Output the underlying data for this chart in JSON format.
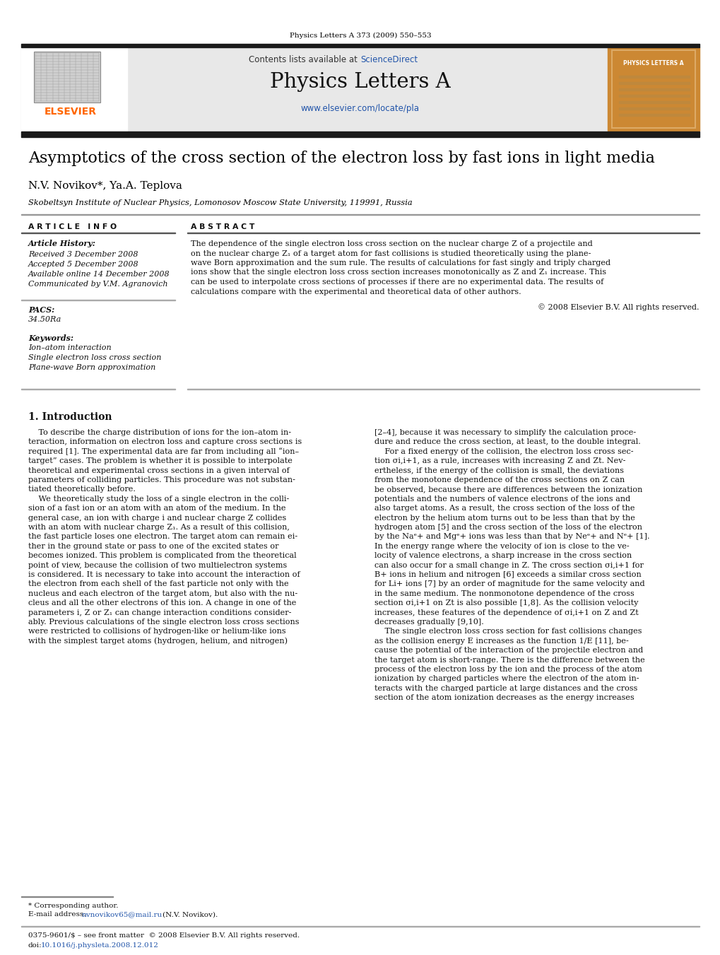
{
  "page_width": 10.2,
  "page_height": 13.51,
  "dpi": 100,
  "background_color": "#ffffff",
  "journal_ref": "Physics Letters A 373 (2009) 550–553",
  "journal_ref_color": "#000000",
  "header_bg_color": "#e8e8e8",
  "header_contents_text": "Contents lists available at ",
  "header_sciencedirect_text": "ScienceDirect",
  "header_sciencedirect_color": "#2255aa",
  "header_journal_name": "Physics Letters A",
  "header_url": "www.elsevier.com/locate/pla",
  "header_url_color": "#2255aa",
  "elsevier_text": "ELSEVIER",
  "elsevier_color": "#ff6600",
  "cover_bg_color": "#cc8833",
  "cover_border_color": "#ddaa66",
  "cover_journal_text": "PHYSICS LETTERS A",
  "cover_journal_color": "#ffffff",
  "black_bar_color": "#1a1a1a",
  "article_title": "Asymptotics of the cross section of the electron loss by fast ions in light media",
  "article_title_color": "#000000",
  "authors": "N.V. Novikov*, Ya.A. Teplova",
  "authors_color": "#000000",
  "affiliation": "Skobeltsyn Institute of Nuclear Physics, Lomonosov Moscow State University, 119991, Russia",
  "affiliation_color": "#000000",
  "section_article_info": "A R T I C L E   I N F O",
  "section_abstract": "A B S T R A C T",
  "article_history_label": "Article History:",
  "received": "Received 3 December 2008",
  "accepted": "Accepted 5 December 2008",
  "available": "Available online 14 December 2008",
  "communicated": "Communicated by V.M. Agranovich",
  "pacs_label": "PACS:",
  "pacs_value": "34.50Ra",
  "keywords_label": "Keywords:",
  "keyword1": "Ion–atom interaction",
  "keyword2": "Single electron loss cross section",
  "keyword3": "Plane-wave Born approximation",
  "copyright_text": "© 2008 Elsevier B.V. All rights reserved.",
  "section1_title": "1. Introduction",
  "abstract_lines": [
    "The dependence of the single electron loss cross section on the nuclear charge Z of a projectile and",
    "on the nuclear charge Z₁ of a target atom for fast collisions is studied theoretically using the plane-",
    "wave Born approximation and the sum rule. The results of calculations for fast singly and triply charged",
    "ions show that the single electron loss cross section increases monotonically as Z and Z₁ increase. This",
    "can be used to interpolate cross sections of processes if there are no experimental data. The results of",
    "calculations compare with the experimental and theoretical data of other authors."
  ],
  "left_col_intro": [
    "    To describe the charge distribution of ions for the ion–atom in-",
    "teraction, information on electron loss and capture cross sections is",
    "required [1]. The experimental data are far from including all “ion–",
    "target” cases. The problem is whether it is possible to interpolate",
    "theoretical and experimental cross sections in a given interval of",
    "parameters of colliding particles. This procedure was not substan-",
    "tiated theoretically before.",
    "    We theoretically study the loss of a single electron in the colli-",
    "sion of a fast ion or an atom with an atom of the medium. In the",
    "general case, an ion with charge i and nuclear charge Z collides",
    "with an atom with nuclear charge Z₁. As a result of this collision,",
    "the fast particle loses one electron. The target atom can remain ei-",
    "ther in the ground state or pass to one of the excited states or",
    "becomes ionized. This problem is complicated from the theoretical",
    "point of view, because the collision of two multielectron systems",
    "is considered. It is necessary to take into account the interaction of",
    "the electron from each shell of the fast particle not only with the",
    "nucleus and each electron of the target atom, but also with the nu-",
    "cleus and all the other electrons of this ion. A change in one of the",
    "parameters i, Z or Z₁ can change interaction conditions consider-",
    "ably. Previous calculations of the single electron loss cross sections",
    "were restricted to collisions of hydrogen-like or helium-like ions",
    "with the simplest target atoms (hydrogen, helium, and nitrogen)"
  ],
  "right_col_intro": [
    "[2–4], because it was necessary to simplify the calculation proce-",
    "dure and reduce the cross section, at least, to the double integral.",
    "    For a fixed energy of the collision, the electron loss cross sec-",
    "tion σi,i+1, as a rule, increases with increasing Z and Zt. Nev-",
    "ertheless, if the energy of the collision is small, the deviations",
    "from the monotone dependence of the cross sections on Z can",
    "be observed, because there are differences between the ionization",
    "potentials and the numbers of valence electrons of the ions and",
    "also target atoms. As a result, the cross section of the loss of the",
    "electron by the helium atom turns out to be less than that by the",
    "hydrogen atom [5] and the cross section of the loss of the electron",
    "by the Naᵉ+ and Mgᵉ+ ions was less than that by Neᵉ+ and Nᵉ+ [1].",
    "In the energy range where the velocity of ion is close to the ve-",
    "locity of valence electrons, a sharp increase in the cross section",
    "can also occur for a small change in Z. The cross section σi,i+1 for",
    "B+ ions in helium and nitrogen [6] exceeds a similar cross section",
    "for Li+ ions [7] by an order of magnitude for the same velocity and",
    "in the same medium. The nonmonotone dependence of the cross",
    "section σi,i+1 on Zt is also possible [1,8]. As the collision velocity",
    "increases, these features of the dependence of σi,i+1 on Z and Zt",
    "decreases gradually [9,10].",
    "    The single electron loss cross section for fast collisions changes",
    "as the collision energy E increases as the function 1/E [11], be-",
    "cause the potential of the interaction of the projectile electron and",
    "the target atom is short-range. There is the difference between the",
    "process of the electron loss by the ion and the process of the atom",
    "ionization by charged particles where the electron of the atom in-",
    "teracts with the charged particle at large distances and the cross",
    "section of the atom ionization decreases as the energy increases"
  ],
  "footnote_star": "* Corresponding author.",
  "footnote_email_label": "E-mail address: ",
  "footnote_email": "nvnovikov65@mail.ru",
  "footnote_email_color": "#2255aa",
  "footnote_name": "(N.V. Novikov).",
  "footer_left": "0375-9601/$ – see front matter  © 2008 Elsevier B.V. All rights reserved.",
  "footer_doi_label": "doi:",
  "footer_doi": "10.1016/j.physleta.2008.12.012",
  "footer_doi_color": "#2255aa"
}
